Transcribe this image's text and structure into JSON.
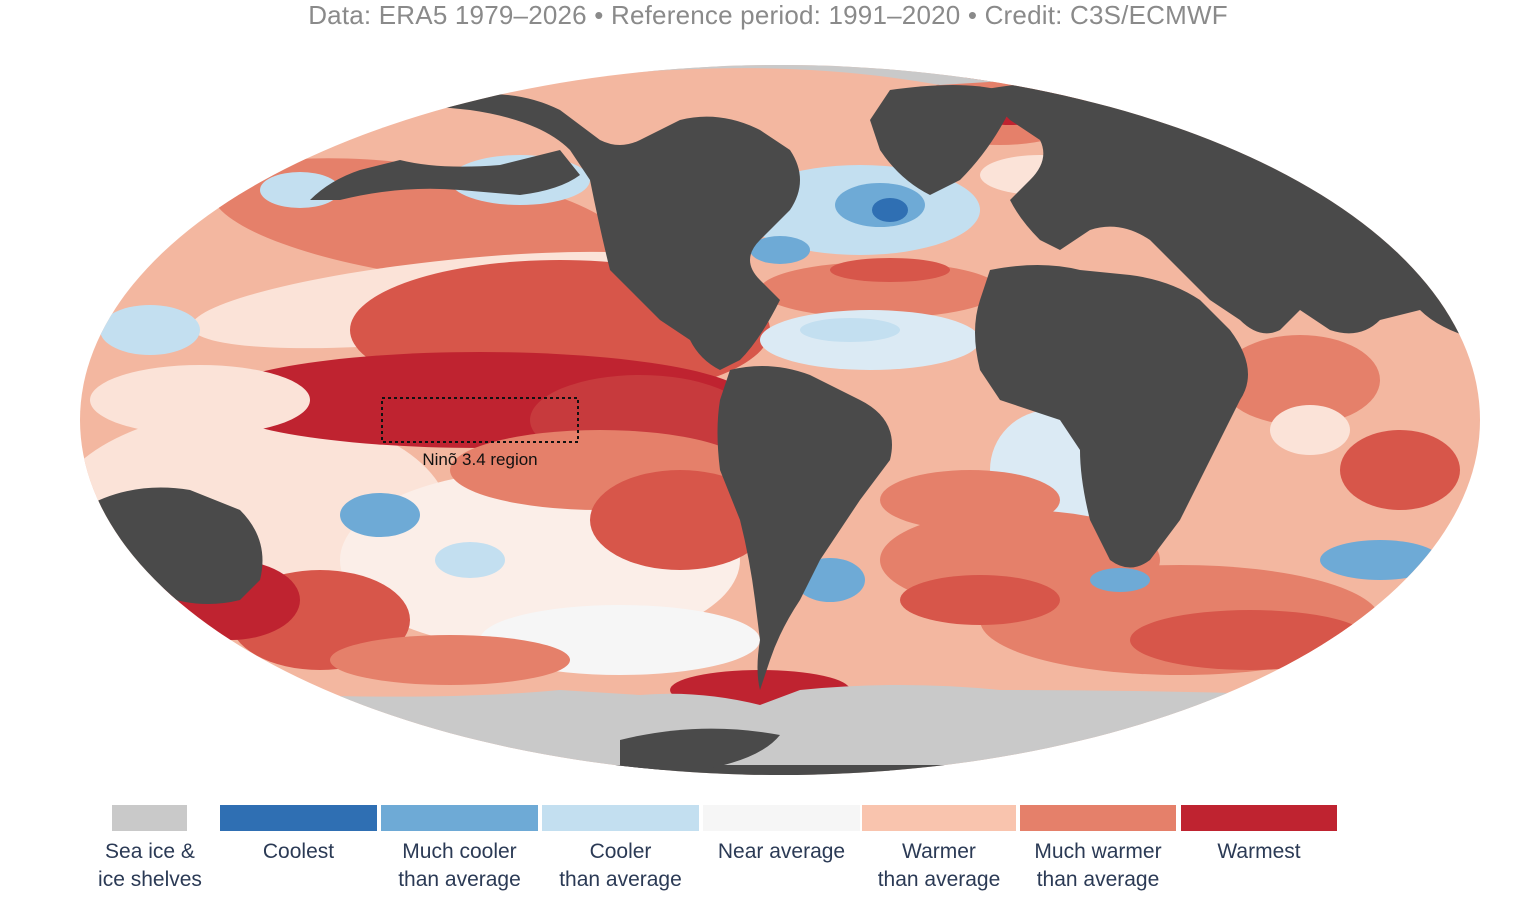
{
  "credit_line": "Data: ERA5 1979–2026 • Reference period: 1991–2020 • Credit: C3S/ECMWF",
  "map": {
    "annotation": "Ninõ 3.4 region",
    "colors": {
      "ocean_warm": "#e9826a",
      "land": "#4a4a4a",
      "ice": "#c9c9c9"
    }
  },
  "legend": [
    {
      "line1": "Sea ice &",
      "line2": "ice shelves",
      "color": "#c9c9c9"
    },
    {
      "line1": "Coolest",
      "line2": "",
      "color": "#2f6fb3"
    },
    {
      "line1": "Much cooler",
      "line2": "than average",
      "color": "#6eaad6"
    },
    {
      "line1": "Cooler",
      "line2": "than average",
      "color": "#c3dff0"
    },
    {
      "line1": "Near average",
      "line2": "",
      "color": "#f6f6f6"
    },
    {
      "line1": "Warmer",
      "line2": "than average",
      "color": "#f9c4ae"
    },
    {
      "line1": "Much warmer",
      "line2": "than average",
      "color": "#e5806a"
    },
    {
      "line1": "Warmest",
      "line2": "",
      "color": "#bf2330"
    }
  ]
}
